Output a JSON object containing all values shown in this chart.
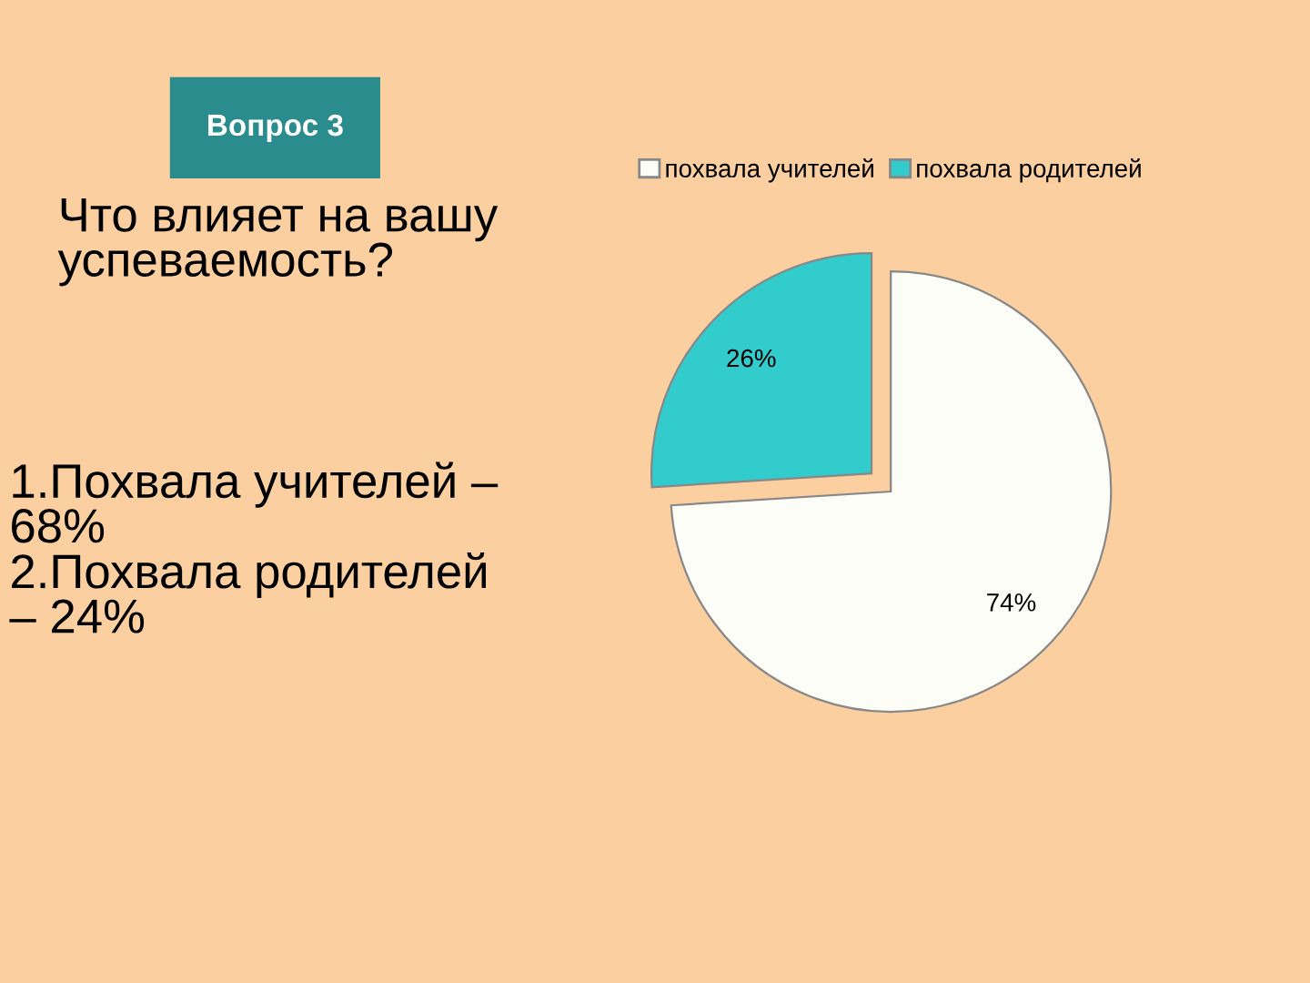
{
  "chart_data": {
    "type": "pie",
    "title": "Вопрос 3",
    "subtitle": "Что влияет на вашу успеваемость?",
    "annotations": [
      "1.Похвала учителей – 68%\n2.Похвала родителей – 24%"
    ],
    "categories": [
      "похвала учителей",
      "похвала родителей"
    ],
    "values": [
      74,
      26
    ],
    "colors": [
      "#fdfdf7",
      "#33cccc"
    ],
    "value_labels": [
      "74%",
      "26%"
    ],
    "legend": "top"
  }
}
